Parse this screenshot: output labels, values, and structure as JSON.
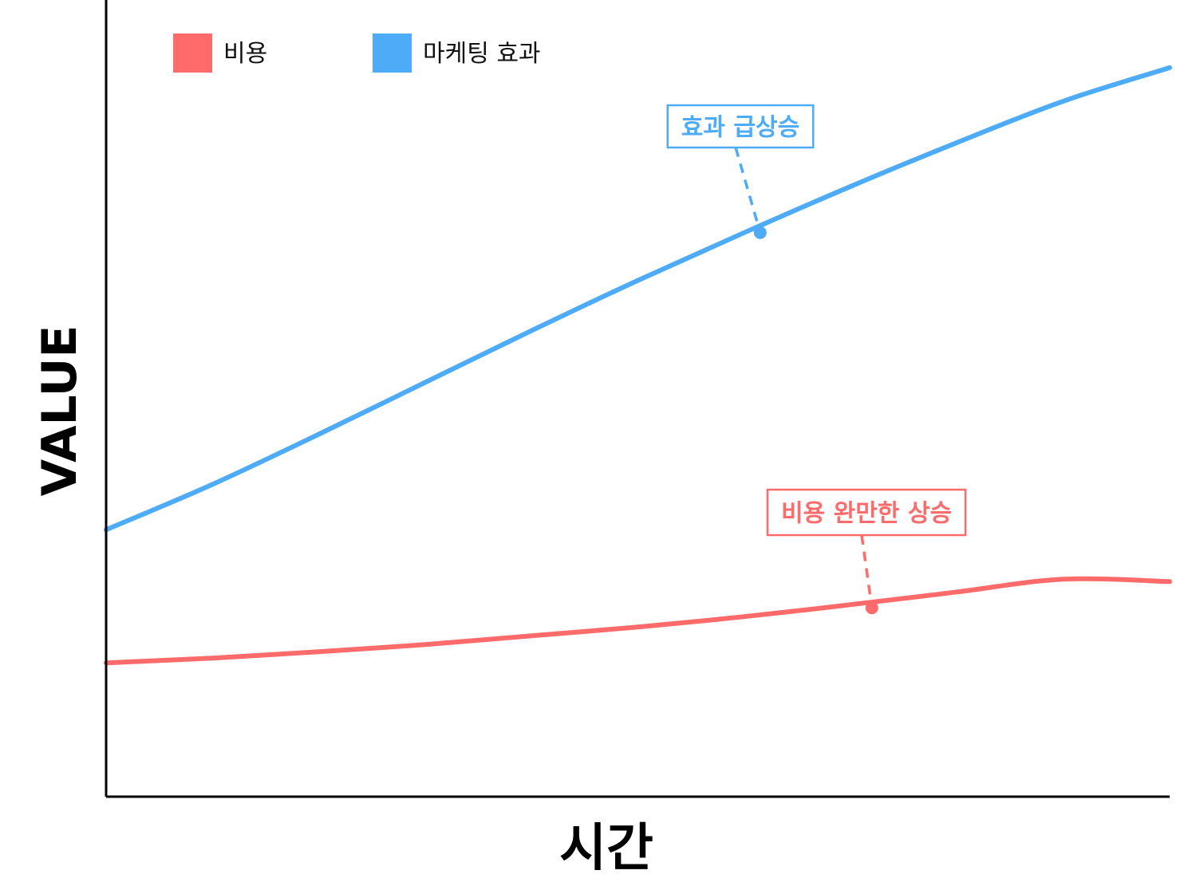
{
  "chart_data": {
    "type": "line",
    "title": "",
    "xlabel": "시간",
    "ylabel": "VALUE",
    "grid": false,
    "legend_placement": "top-left",
    "xlim": [
      0,
      10
    ],
    "ylim": [
      0,
      100
    ],
    "x": [
      0,
      1,
      2,
      3,
      4,
      5,
      6,
      7,
      8,
      9,
      10
    ],
    "series": [
      {
        "name": "비용",
        "color": "#ff6b6b",
        "values": [
          16.8,
          17.4,
          18.2,
          19.1,
          20.2,
          21.3,
          22.6,
          24.1,
          25.7,
          27.3,
          27.0
        ]
      },
      {
        "name": "마케팅 효과",
        "color": "#4dabf7",
        "values": [
          33.5,
          39.2,
          45.5,
          52.0,
          58.5,
          64.8,
          70.8,
          76.6,
          82.1,
          87.3,
          91.5
        ]
      }
    ],
    "annotations": [
      {
        "text": "효과 급상승",
        "series": 1,
        "x": 6.15,
        "y": 70.8,
        "color": "#4dabf7"
      },
      {
        "text": "비용 완만한 상승",
        "series": 0,
        "x": 7.2,
        "y": 23.7,
        "color": "#ff6b6b"
      }
    ]
  }
}
